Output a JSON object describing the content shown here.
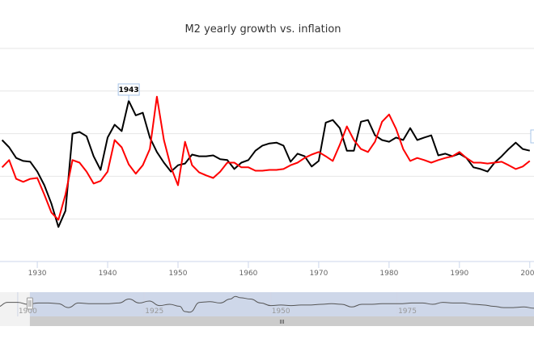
{
  "chart_data": {
    "type": "line",
    "title": "M2 yearly growth vs. inflation",
    "xlabel": "",
    "ylabel": "",
    "xlim": [
      1924.7,
      2000.6
    ],
    "ylim": [
      -20,
      30
    ],
    "grid": true,
    "x_ticks": [
      "1930",
      "1940",
      "1950",
      "1960",
      "1970",
      "1980",
      "1990",
      "2000"
    ],
    "x_tick_values": [
      1930,
      1940,
      1950,
      1960,
      1970,
      1980,
      1990,
      2000
    ],
    "y_grid_values": [
      -10,
      0,
      10,
      20,
      30
    ],
    "years": [
      1925,
      1926,
      1927,
      1928,
      1929,
      1930,
      1931,
      1932,
      1933,
      1934,
      1935,
      1936,
      1937,
      1938,
      1939,
      1940,
      1941,
      1942,
      1943,
      1944,
      1945,
      1946,
      1947,
      1948,
      1949,
      1950,
      1951,
      1952,
      1953,
      1954,
      1955,
      1956,
      1957,
      1958,
      1959,
      1960,
      1961,
      1962,
      1963,
      1964,
      1965,
      1966,
      1967,
      1968,
      1969,
      1970,
      1971,
      1972,
      1973,
      1974,
      1975,
      1976,
      1977,
      1978,
      1979,
      1980,
      1981,
      1982,
      1983,
      1984,
      1985,
      1986,
      1987,
      1988,
      1989,
      1990,
      1991,
      1992,
      1993,
      1994,
      1995,
      1996,
      1997,
      1998,
      1999,
      2000
    ],
    "series": [
      {
        "name": "M2 yearly growth",
        "color": "#000000",
        "values": [
          8.5,
          6.8,
          4.3,
          3.6,
          3.4,
          1.1,
          -2.1,
          -6.4,
          -11.9,
          -8.1,
          10,
          10.4,
          9.4,
          4.7,
          1.5,
          9.1,
          12.1,
          10.6,
          17.7,
          14.3,
          14.9,
          9.1,
          5.7,
          3.2,
          1.1,
          2.6,
          3,
          5.1,
          4.7,
          4.7,
          4.9,
          4,
          3.8,
          1.7,
          3.2,
          3.8,
          6,
          7.2,
          7.7,
          7.9,
          7.2,
          3.4,
          5.3,
          4.7,
          2.3,
          3.6,
          12.6,
          13.2,
          11.3,
          6,
          6,
          12.8,
          13.2,
          9.6,
          8.5,
          8.1,
          9.1,
          8.5,
          11.3,
          8.5,
          9.1,
          9.6,
          4.9,
          5.3,
          4.7,
          5.3,
          4.3,
          2.1,
          1.7,
          1.1,
          3.2,
          4.7,
          6.4,
          7.9,
          6.4,
          6
        ]
      },
      {
        "name": "Inflation",
        "color": "#ff0000",
        "values": [
          2.1,
          3.8,
          -0.6,
          -1.3,
          -0.6,
          -0.4,
          -4.3,
          -8.5,
          -10.2,
          -4.3,
          3.8,
          3.2,
          1.1,
          -1.7,
          -1.1,
          1.1,
          8.5,
          6.8,
          2.8,
          0.6,
          2.6,
          6.4,
          18.7,
          8.5,
          2.1,
          -2.1,
          8.1,
          2.6,
          0.9,
          0.2,
          -0.4,
          1.1,
          3.2,
          3.2,
          2.1,
          2.1,
          1.3,
          1.3,
          1.5,
          1.5,
          1.7,
          2.6,
          3.2,
          4.3,
          5.1,
          5.7,
          4.7,
          3.6,
          7.4,
          11.7,
          8.5,
          6.4,
          5.7,
          8.1,
          12.8,
          14.5,
          11.1,
          6.4,
          3.6,
          4.3,
          3.8,
          3.2,
          3.8,
          4.3,
          4.7,
          5.7,
          4.3,
          3.2,
          3.2,
          3,
          3.2,
          3.4,
          2.6,
          1.7,
          2.3,
          3.6
        ]
      }
    ],
    "flags": [
      {
        "label": "1943",
        "year": 1943,
        "series": "M2 yearly growth"
      }
    ],
    "navigator": {
      "xlim": [
        1896.5,
        2002
      ],
      "ticks": [
        "1900",
        "1925",
        "1950",
        "1975"
      ],
      "tick_values": [
        1900,
        1925,
        1950,
        1975
      ],
      "selected_range": [
        1902.4,
        2002
      ],
      "years": [
        1896,
        1898,
        1900,
        1902,
        1904,
        1906,
        1908,
        1910,
        1912,
        1914,
        1916,
        1918,
        1920,
        1922,
        1924,
        1926,
        1928,
        1930,
        1932,
        1933,
        1934,
        1936,
        1938,
        1940,
        1942,
        1943,
        1944,
        1946,
        1948,
        1950,
        1952,
        1954,
        1956,
        1958,
        1960,
        1962,
        1964,
        1966,
        1968,
        1970,
        1972,
        1974,
        1976,
        1978,
        1980,
        1982,
        1984,
        1986,
        1988,
        1990,
        1992,
        1994,
        1996,
        1998,
        2000,
        2002
      ],
      "values": [
        2,
        9,
        9,
        6,
        8,
        8,
        7,
        1,
        8,
        7,
        7,
        7,
        8,
        14,
        8,
        11,
        4,
        6,
        3,
        -5,
        -6,
        9,
        10,
        8,
        14,
        18,
        16,
        14,
        8,
        4,
        5,
        4,
        5,
        5,
        6,
        7,
        6,
        2,
        6,
        6,
        7,
        7,
        7,
        8,
        8,
        6,
        9,
        8,
        8,
        6,
        5,
        3,
        1,
        1,
        2,
        0
      ]
    },
    "scrollbar_grip": "III"
  }
}
